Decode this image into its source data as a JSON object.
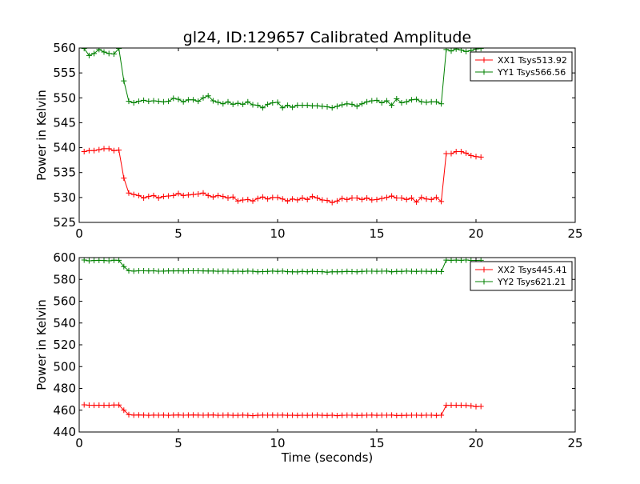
{
  "chart_data": [
    {
      "type": "line",
      "title": "gl24, ID:129657 Calibrated Amplitude",
      "xlabel": "",
      "ylabel": "Power in Kelvin",
      "xlim": [
        0,
        25
      ],
      "ylim": [
        525,
        560
      ],
      "xticks": [
        0,
        5,
        10,
        15,
        20,
        25
      ],
      "yticks": [
        525,
        530,
        535,
        540,
        545,
        550,
        555,
        560
      ],
      "grid": false,
      "legend": "top-right",
      "x": [
        0.25,
        0.5,
        0.75,
        1.0,
        1.25,
        1.5,
        1.75,
        2.0,
        2.25,
        2.5,
        2.75,
        3.0,
        3.25,
        3.5,
        3.75,
        4.0,
        4.25,
        4.5,
        4.75,
        5.0,
        5.25,
        5.5,
        5.75,
        6.0,
        6.25,
        6.5,
        6.75,
        7.0,
        7.25,
        7.5,
        7.75,
        8.0,
        8.25,
        8.5,
        8.75,
        9.0,
        9.25,
        9.5,
        9.75,
        10.0,
        10.25,
        10.5,
        10.75,
        11.0,
        11.25,
        11.5,
        11.75,
        12.0,
        12.25,
        12.5,
        12.75,
        13.0,
        13.25,
        13.5,
        13.75,
        14.0,
        14.25,
        14.5,
        14.75,
        15.0,
        15.25,
        15.5,
        15.75,
        16.0,
        16.25,
        16.5,
        16.75,
        17.0,
        17.25,
        17.5,
        17.75,
        18.0,
        18.25,
        18.5,
        18.75,
        19.0,
        19.25,
        19.5,
        19.75,
        20.0,
        20.25
      ],
      "series": [
        {
          "name": "XX1 Tsys513.92",
          "color": "#ff0000",
          "values": [
            539.2,
            539.4,
            539.4,
            539.6,
            539.8,
            539.8,
            539.4,
            539.5,
            533.9,
            530.9,
            530.6,
            530.4,
            529.9,
            530.2,
            530.4,
            529.9,
            530.2,
            530.3,
            530.4,
            530.8,
            530.4,
            530.5,
            530.6,
            530.7,
            530.9,
            530.4,
            530.1,
            530.4,
            530.2,
            529.9,
            530.1,
            529.3,
            529.5,
            529.6,
            529.3,
            529.8,
            530.1,
            529.7,
            530.0,
            530.0,
            529.7,
            529.3,
            529.7,
            529.5,
            529.9,
            529.6,
            530.2,
            529.9,
            529.5,
            529.4,
            529.0,
            529.3,
            529.8,
            529.6,
            529.9,
            529.9,
            529.6,
            529.9,
            529.5,
            529.6,
            529.8,
            530.0,
            530.3,
            529.9,
            529.9,
            529.6,
            529.9,
            529.1,
            530.0,
            529.7,
            529.6,
            530.0,
            529.2,
            538.8,
            538.8,
            539.2,
            539.2,
            538.9,
            538.4,
            538.2,
            538.1
          ]
        },
        {
          "name": "YY1 Tsys566.56",
          "color": "#008000",
          "values": [
            559.9,
            558.5,
            558.9,
            559.7,
            559.2,
            558.9,
            558.8,
            559.9,
            553.4,
            549.3,
            549.0,
            549.3,
            549.5,
            549.3,
            549.4,
            549.3,
            549.2,
            549.3,
            549.9,
            549.7,
            549.2,
            549.6,
            549.6,
            549.3,
            550.0,
            550.4,
            549.4,
            549.1,
            548.8,
            549.2,
            548.7,
            548.9,
            548.7,
            549.2,
            548.6,
            548.5,
            548.0,
            548.7,
            549.0,
            549.1,
            548.0,
            548.5,
            548.1,
            548.5,
            548.5,
            548.5,
            548.4,
            548.4,
            548.3,
            548.2,
            548.0,
            548.3,
            548.6,
            548.8,
            548.7,
            548.3,
            548.8,
            549.2,
            549.4,
            549.5,
            549.0,
            549.4,
            548.5,
            549.8,
            549.0,
            549.2,
            549.6,
            549.7,
            549.2,
            549.1,
            549.2,
            549.2,
            548.8,
            559.7,
            559.4,
            559.8,
            559.6,
            559.3,
            559.5,
            559.8,
            559.9
          ]
        }
      ]
    },
    {
      "type": "line",
      "title": "",
      "xlabel": "Time (seconds)",
      "ylabel": "Power in Kelvin",
      "xlim": [
        0,
        25
      ],
      "ylim": [
        440,
        600
      ],
      "xticks": [
        0,
        5,
        10,
        15,
        20,
        25
      ],
      "yticks": [
        440,
        460,
        480,
        500,
        520,
        540,
        560,
        580,
        600
      ],
      "grid": false,
      "legend": "top-right",
      "x": [
        0.25,
        0.5,
        0.75,
        1.0,
        1.25,
        1.5,
        1.75,
        2.0,
        2.25,
        2.5,
        2.75,
        3.0,
        3.25,
        3.5,
        3.75,
        4.0,
        4.25,
        4.5,
        4.75,
        5.0,
        5.25,
        5.5,
        5.75,
        6.0,
        6.25,
        6.5,
        6.75,
        7.0,
        7.25,
        7.5,
        7.75,
        8.0,
        8.25,
        8.5,
        8.75,
        9.0,
        9.25,
        9.5,
        9.75,
        10.0,
        10.25,
        10.5,
        10.75,
        11.0,
        11.25,
        11.5,
        11.75,
        12.0,
        12.25,
        12.5,
        12.75,
        13.0,
        13.25,
        13.5,
        13.75,
        14.0,
        14.25,
        14.5,
        14.75,
        15.0,
        15.25,
        15.5,
        15.75,
        16.0,
        16.25,
        16.5,
        16.75,
        17.0,
        17.25,
        17.5,
        17.75,
        18.0,
        18.25,
        18.5,
        18.75,
        19.0,
        19.25,
        19.5,
        19.75,
        20.0,
        20.25
      ],
      "series": [
        {
          "name": "XX2 Tsys445.41",
          "color": "#ff0000",
          "values": [
            465.0,
            464.6,
            464.5,
            464.6,
            464.5,
            464.5,
            464.8,
            464.8,
            460.0,
            456.0,
            455.5,
            455.6,
            455.5,
            455.3,
            455.5,
            455.4,
            455.5,
            455.3,
            455.5,
            455.6,
            455.4,
            455.5,
            455.6,
            455.5,
            455.4,
            455.5,
            455.6,
            455.3,
            455.4,
            455.5,
            455.3,
            455.3,
            455.5,
            455.3,
            455.0,
            455.3,
            455.5,
            455.4,
            455.5,
            455.4,
            455.5,
            455.3,
            455.4,
            455.2,
            455.4,
            455.3,
            455.4,
            455.5,
            455.3,
            455.2,
            455.4,
            455.0,
            455.3,
            455.4,
            455.4,
            455.2,
            455.3,
            455.4,
            455.5,
            455.3,
            455.4,
            455.4,
            455.5,
            455.1,
            455.2,
            455.3,
            455.4,
            455.4,
            455.3,
            455.4,
            455.4,
            455.2,
            455.4,
            464.5,
            464.6,
            464.5,
            464.5,
            464.4,
            464.0,
            463.3,
            463.5
          ]
        },
        {
          "name": "YY2 Tsys621.21",
          "color": "#008000",
          "values": [
            597.8,
            597.1,
            597.3,
            597.5,
            597.3,
            597.1,
            597.6,
            597.5,
            591.7,
            588.0,
            587.6,
            587.9,
            587.9,
            587.8,
            587.9,
            587.5,
            587.6,
            587.8,
            587.8,
            587.9,
            587.7,
            587.9,
            587.9,
            587.9,
            587.8,
            587.7,
            587.7,
            587.4,
            587.6,
            587.5,
            587.3,
            587.5,
            587.3,
            587.6,
            587.4,
            587.0,
            587.2,
            587.3,
            587.6,
            587.3,
            587.6,
            587.1,
            587.0,
            586.9,
            587.3,
            587.0,
            587.4,
            587.2,
            587.1,
            586.6,
            587.0,
            587.0,
            587.1,
            587.3,
            587.2,
            587.0,
            587.3,
            587.5,
            587.5,
            587.4,
            587.5,
            587.6,
            587.0,
            587.3,
            587.3,
            587.6,
            587.4,
            587.3,
            587.5,
            587.4,
            587.3,
            587.4,
            587.2,
            597.7,
            597.5,
            597.7,
            597.5,
            597.8,
            597.4,
            597.4,
            597.5
          ]
        }
      ]
    }
  ]
}
